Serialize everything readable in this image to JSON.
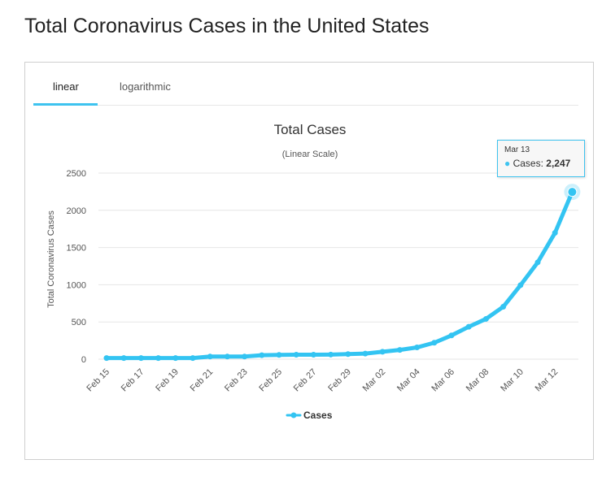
{
  "page": {
    "title": "Total Coronavirus Cases in the United States"
  },
  "tabs": [
    {
      "label": "linear",
      "active": true
    },
    {
      "label": "logarithmic",
      "active": false
    }
  ],
  "colors": {
    "accent": "#3ec3ef",
    "series": "#33c4f2",
    "grid": "#e6e6e6"
  },
  "tooltip": {
    "date": "Mar 13",
    "series_label": "Cases:",
    "value": "2,247"
  },
  "chart_data": {
    "type": "line",
    "title": "Total Cases",
    "subtitle": "(Linear Scale)",
    "xlabel": "",
    "ylabel": "Total Coronavirus Cases",
    "ylim": [
      0,
      2500
    ],
    "yticks": [
      0,
      500,
      1000,
      1500,
      2000,
      2500
    ],
    "grid": true,
    "legend": "bottom-center",
    "x": [
      "Feb 15",
      "Feb 16",
      "Feb 17",
      "Feb 18",
      "Feb 19",
      "Feb 20",
      "Feb 21",
      "Feb 22",
      "Feb 23",
      "Feb 24",
      "Feb 25",
      "Feb 26",
      "Feb 27",
      "Feb 28",
      "Feb 29",
      "Mar 01",
      "Mar 02",
      "Mar 03",
      "Mar 04",
      "Mar 05",
      "Mar 06",
      "Mar 07",
      "Mar 08",
      "Mar 09",
      "Mar 10",
      "Mar 11",
      "Mar 12",
      "Mar 13"
    ],
    "xtick_labels": [
      "Feb 15",
      "Feb 17",
      "Feb 19",
      "Feb 21",
      "Feb 23",
      "Feb 25",
      "Feb 27",
      "Feb 29",
      "Mar 02",
      "Mar 04",
      "Mar 06",
      "Mar 08",
      "Mar 10",
      "Mar 12"
    ],
    "series": [
      {
        "name": "Cases",
        "values": [
          15,
          15,
          15,
          15,
          15,
          15,
          35,
          35,
          35,
          53,
          57,
          60,
          60,
          62,
          68,
          75,
          100,
          124,
          158,
          221,
          319,
          435,
          541,
          704,
          994,
          1301,
          1697,
          2247
        ]
      }
    ]
  }
}
